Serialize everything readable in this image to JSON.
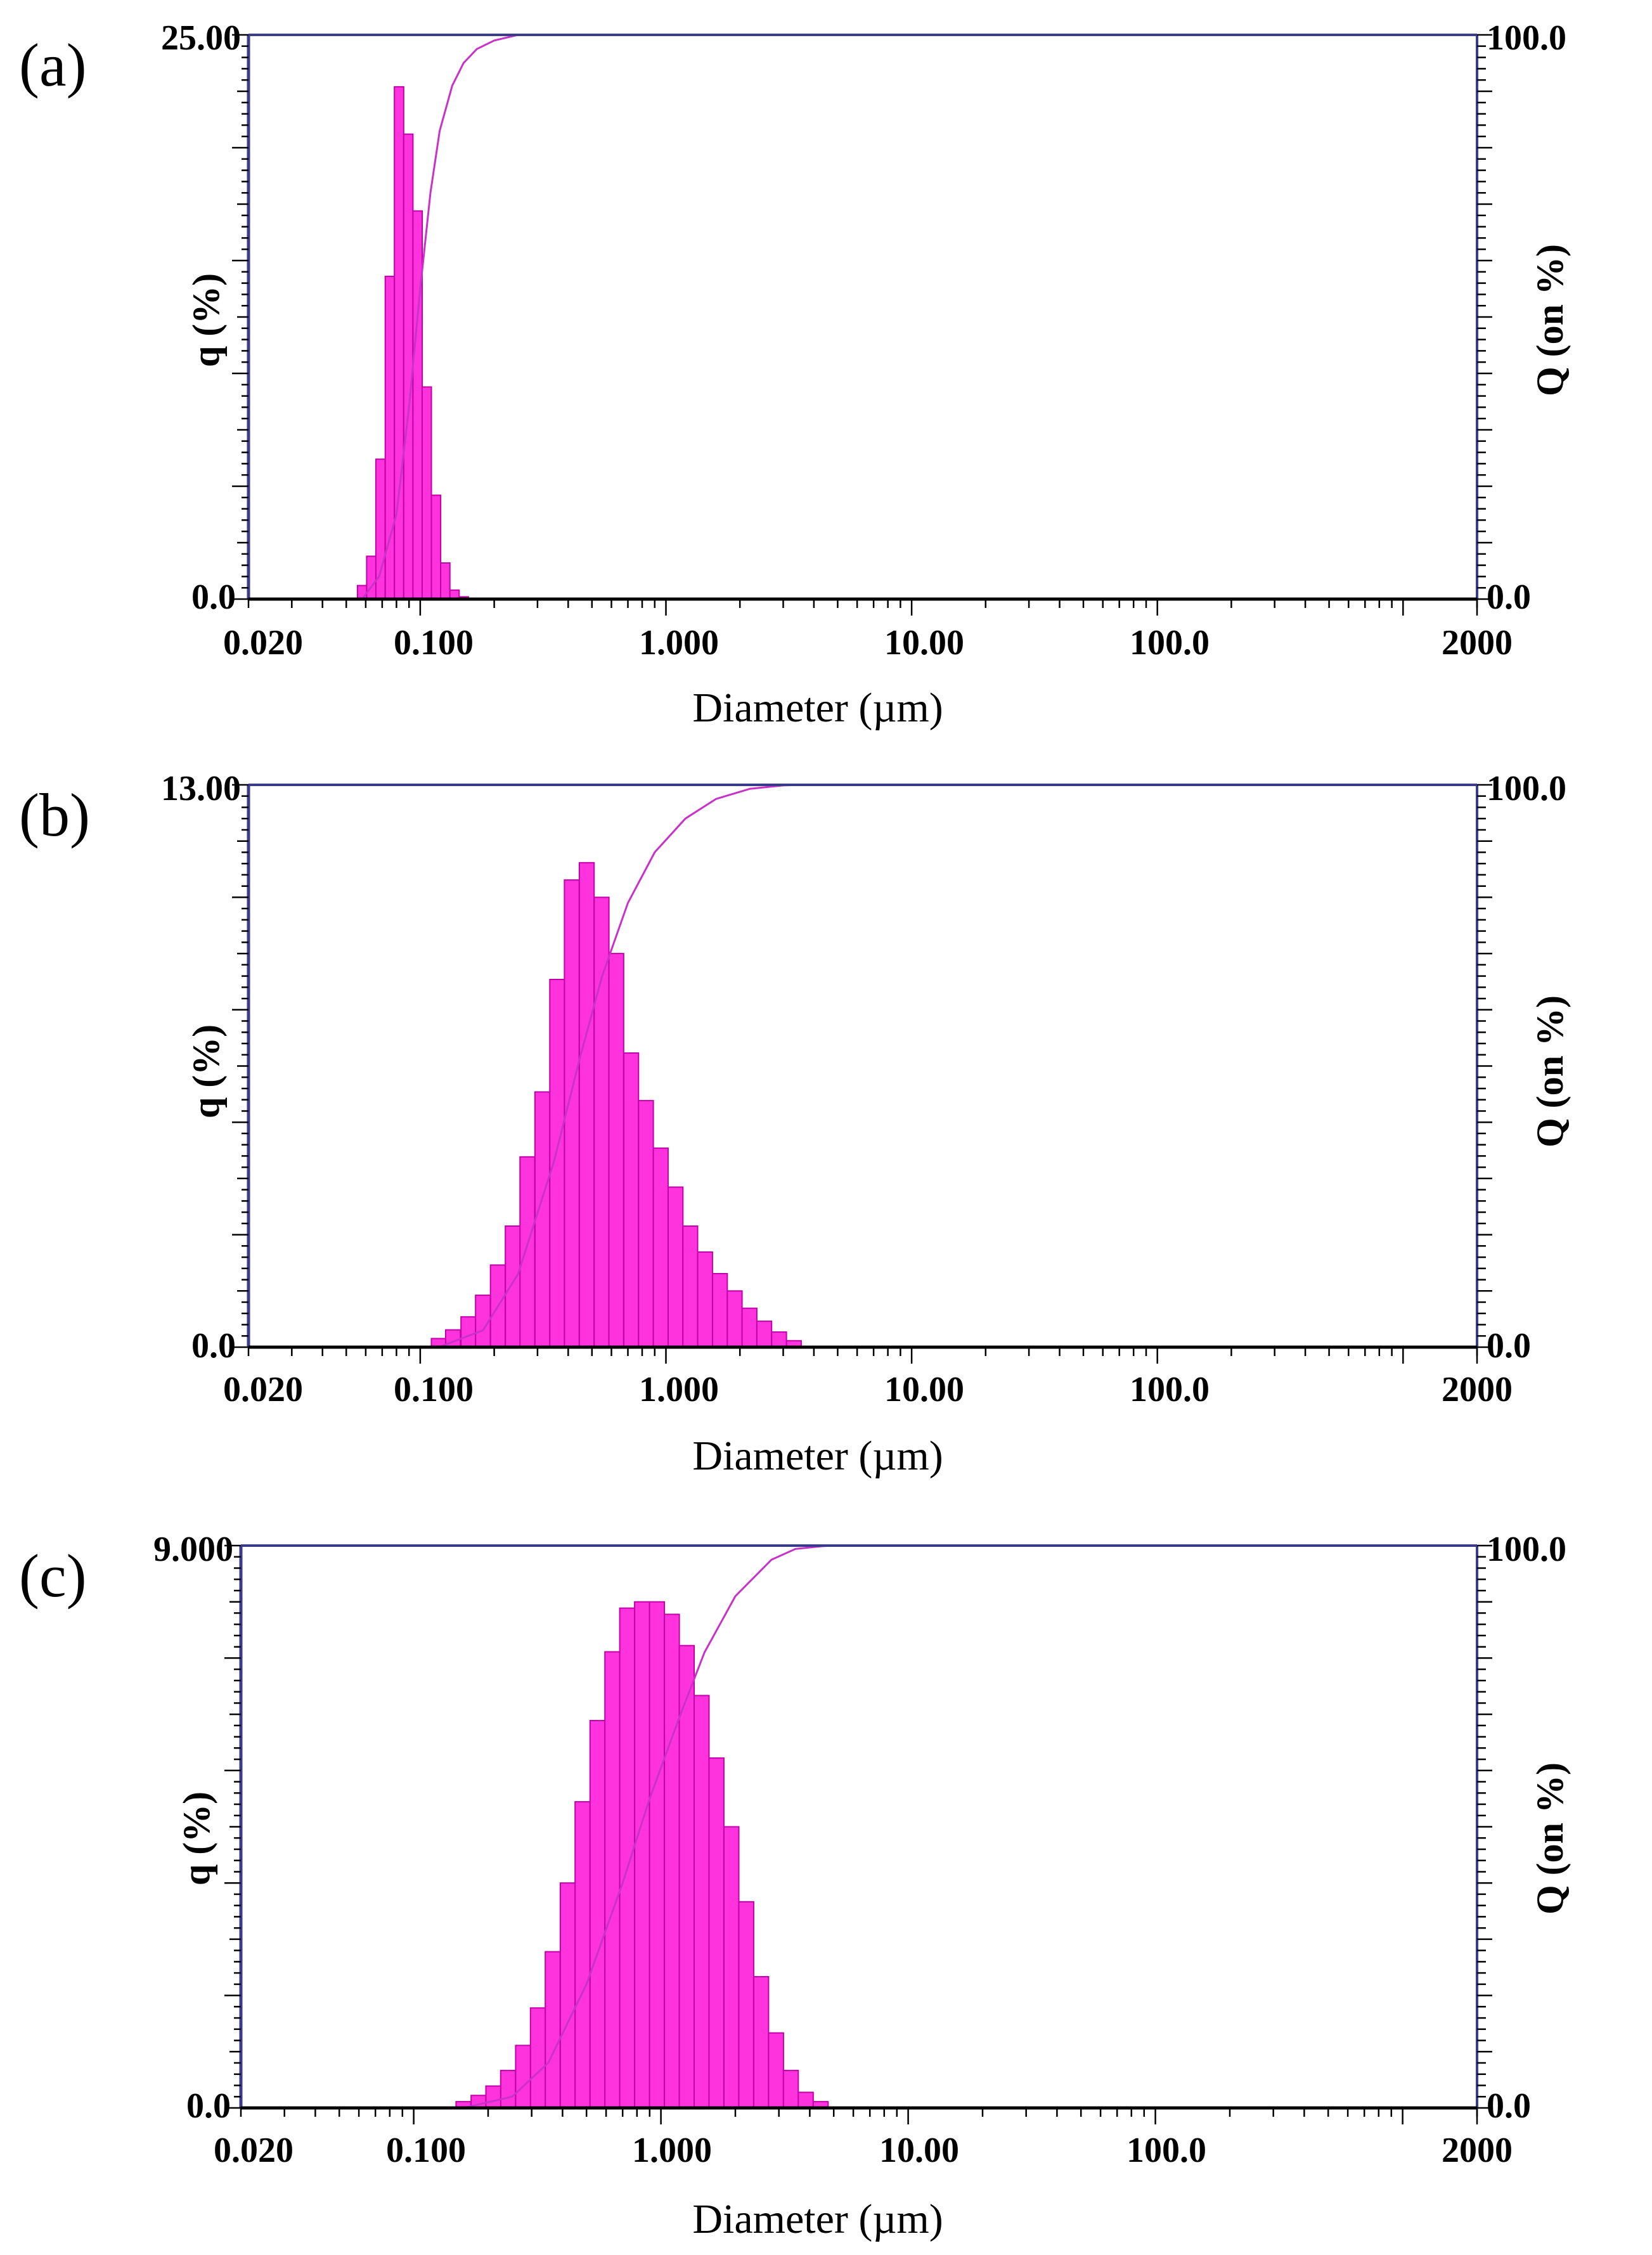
{
  "colors": {
    "bar_fill": "#ff33dd",
    "bar_stroke": "#c000a8",
    "curve": "#c832c8",
    "frame": "#3c3c8c",
    "axis": "#000000"
  },
  "chart_data": [
    {
      "panel": "(a)",
      "type": "bar",
      "subtype": "histogram with cumulative line, log x-axis",
      "xlabel": "Diameter (µm)",
      "ylabel": "q (%)",
      "y2label": "Q (on %)",
      "xscale": "log",
      "xlim": [
        0.02,
        2000
      ],
      "ylim": [
        0,
        25
      ],
      "y2lim": [
        0,
        100
      ],
      "x_tick_labels": [
        "0.020",
        "0.100",
        "1.000",
        "10.00",
        "100.0",
        "2000"
      ],
      "x_tick_values": [
        0.02,
        0.1,
        1,
        10,
        100,
        2000
      ],
      "y_tick_labels": [
        "0.0",
        "25.00"
      ],
      "y2_tick_labels": [
        "0.0",
        "100.0"
      ],
      "bin_ratio": 1.0905,
      "bins": [
        {
          "x": 0.058,
          "q": 0.6
        },
        {
          "x": 0.0632,
          "q": 1.9
        },
        {
          "x": 0.0689,
          "q": 6.2
        },
        {
          "x": 0.0752,
          "q": 14.3
        },
        {
          "x": 0.082,
          "q": 22.7
        },
        {
          "x": 0.0894,
          "q": 20.6
        },
        {
          "x": 0.0975,
          "q": 17.2
        },
        {
          "x": 0.1063,
          "q": 9.4
        },
        {
          "x": 0.1159,
          "q": 4.6
        },
        {
          "x": 0.1264,
          "q": 1.6
        },
        {
          "x": 0.1379,
          "q": 0.4
        },
        {
          "x": 0.1504,
          "q": 0.1
        }
      ],
      "cumulative": {
        "x": [
          0.058,
          0.068,
          0.08,
          0.09,
          0.1,
          0.11,
          0.12,
          0.135,
          0.15,
          0.17,
          0.2,
          0.25,
          2000
        ],
        "Q": [
          0,
          4,
          15,
          34,
          55,
          72,
          83,
          91,
          95,
          97.5,
          99,
          100,
          100
        ]
      }
    },
    {
      "panel": "(b)",
      "type": "bar",
      "subtype": "histogram with cumulative line, log x-axis",
      "xlabel": "Diameter (µm)",
      "ylabel": "q (%)",
      "y2label": "Q (on %)",
      "xscale": "log",
      "xlim": [
        0.02,
        2000
      ],
      "ylim": [
        0,
        13
      ],
      "y2lim": [
        0,
        100
      ],
      "x_tick_labels": [
        "0.020",
        "0.100",
        "1.000",
        "10.00",
        "100.0",
        "2000"
      ],
      "x_tick_values": [
        0.02,
        0.1,
        1,
        10,
        100,
        2000
      ],
      "y_tick_labels": [
        "0.0",
        "13.00"
      ],
      "y2_tick_labels": [
        "0.0",
        "100.0"
      ],
      "bin_ratio": 1.1487,
      "bins": [
        {
          "x": 0.119,
          "q": 0.2
        },
        {
          "x": 0.136,
          "q": 0.4
        },
        {
          "x": 0.157,
          "q": 0.7
        },
        {
          "x": 0.18,
          "q": 1.2
        },
        {
          "x": 0.207,
          "q": 1.9
        },
        {
          "x": 0.238,
          "q": 2.8
        },
        {
          "x": 0.273,
          "q": 4.4
        },
        {
          "x": 0.314,
          "q": 5.9
        },
        {
          "x": 0.361,
          "q": 8.5
        },
        {
          "x": 0.414,
          "q": 10.8
        },
        {
          "x": 0.476,
          "q": 11.2
        },
        {
          "x": 0.547,
          "q": 10.4
        },
        {
          "x": 0.628,
          "q": 9.1
        },
        {
          "x": 0.722,
          "q": 6.8
        },
        {
          "x": 0.829,
          "q": 5.7
        },
        {
          "x": 0.952,
          "q": 4.6
        },
        {
          "x": 1.094,
          "q": 3.7
        },
        {
          "x": 1.256,
          "q": 2.8
        },
        {
          "x": 1.443,
          "q": 2.2
        },
        {
          "x": 1.658,
          "q": 1.7
        },
        {
          "x": 1.904,
          "q": 1.3
        },
        {
          "x": 2.187,
          "q": 0.9
        },
        {
          "x": 2.512,
          "q": 0.6
        },
        {
          "x": 2.886,
          "q": 0.35
        },
        {
          "x": 3.315,
          "q": 0.15
        }
      ],
      "cumulative": {
        "x": [
          0.119,
          0.18,
          0.25,
          0.35,
          0.45,
          0.55,
          0.7,
          0.9,
          1.2,
          1.6,
          2.2,
          3.0,
          3.6,
          2000
        ],
        "Q": [
          0,
          3,
          13,
          33,
          52,
          66,
          79,
          88,
          94,
          97.5,
          99.3,
          99.9,
          100,
          100
        ]
      }
    },
    {
      "panel": "(c)",
      "type": "bar",
      "subtype": "histogram with cumulative line, log x-axis",
      "xlabel": "Diameter (µm)",
      "ylabel": "q (%)",
      "y2label": "Q (on %)",
      "xscale": "log",
      "xlim": [
        0.02,
        2000
      ],
      "ylim": [
        0,
        9
      ],
      "y2lim": [
        0,
        100
      ],
      "x_tick_labels": [
        "0.020",
        "0.100",
        "1.000",
        "10.00",
        "100.0",
        "2000"
      ],
      "x_tick_values": [
        0.02,
        0.1,
        1,
        10,
        100,
        2000
      ],
      "y_tick_labels": [
        "0.0",
        "9.000"
      ],
      "y2_tick_labels": [
        "0.0",
        "100.0"
      ],
      "bin_ratio": 1.1487,
      "bins": [
        {
          "x": 0.159,
          "q": 0.1
        },
        {
          "x": 0.183,
          "q": 0.2
        },
        {
          "x": 0.21,
          "q": 0.35
        },
        {
          "x": 0.241,
          "q": 0.6
        },
        {
          "x": 0.277,
          "q": 1.0
        },
        {
          "x": 0.318,
          "q": 1.6
        },
        {
          "x": 0.365,
          "q": 2.5
        },
        {
          "x": 0.42,
          "q": 3.6
        },
        {
          "x": 0.482,
          "q": 4.9
        },
        {
          "x": 0.554,
          "q": 6.2
        },
        {
          "x": 0.636,
          "q": 7.3
        },
        {
          "x": 0.73,
          "q": 8.0
        },
        {
          "x": 0.839,
          "q": 8.1
        },
        {
          "x": 0.964,
          "q": 8.1
        },
        {
          "x": 1.107,
          "q": 7.9
        },
        {
          "x": 1.271,
          "q": 7.4
        },
        {
          "x": 1.46,
          "q": 6.6
        },
        {
          "x": 1.677,
          "q": 5.6
        },
        {
          "x": 1.927,
          "q": 4.5
        },
        {
          "x": 2.213,
          "q": 3.3
        },
        {
          "x": 2.542,
          "q": 2.1
        },
        {
          "x": 2.92,
          "q": 1.2
        },
        {
          "x": 3.354,
          "q": 0.6
        },
        {
          "x": 3.853,
          "q": 0.25
        },
        {
          "x": 4.425,
          "q": 0.1
        }
      ],
      "cumulative": {
        "x": [
          0.159,
          0.25,
          0.35,
          0.5,
          0.7,
          0.9,
          1.2,
          1.5,
          2.0,
          2.8,
          3.5,
          4.5,
          5.0,
          2000
        ],
        "Q": [
          0,
          2,
          8,
          22,
          40,
          55,
          70,
          81,
          91,
          97.5,
          99.4,
          99.9,
          100,
          100
        ]
      }
    }
  ]
}
